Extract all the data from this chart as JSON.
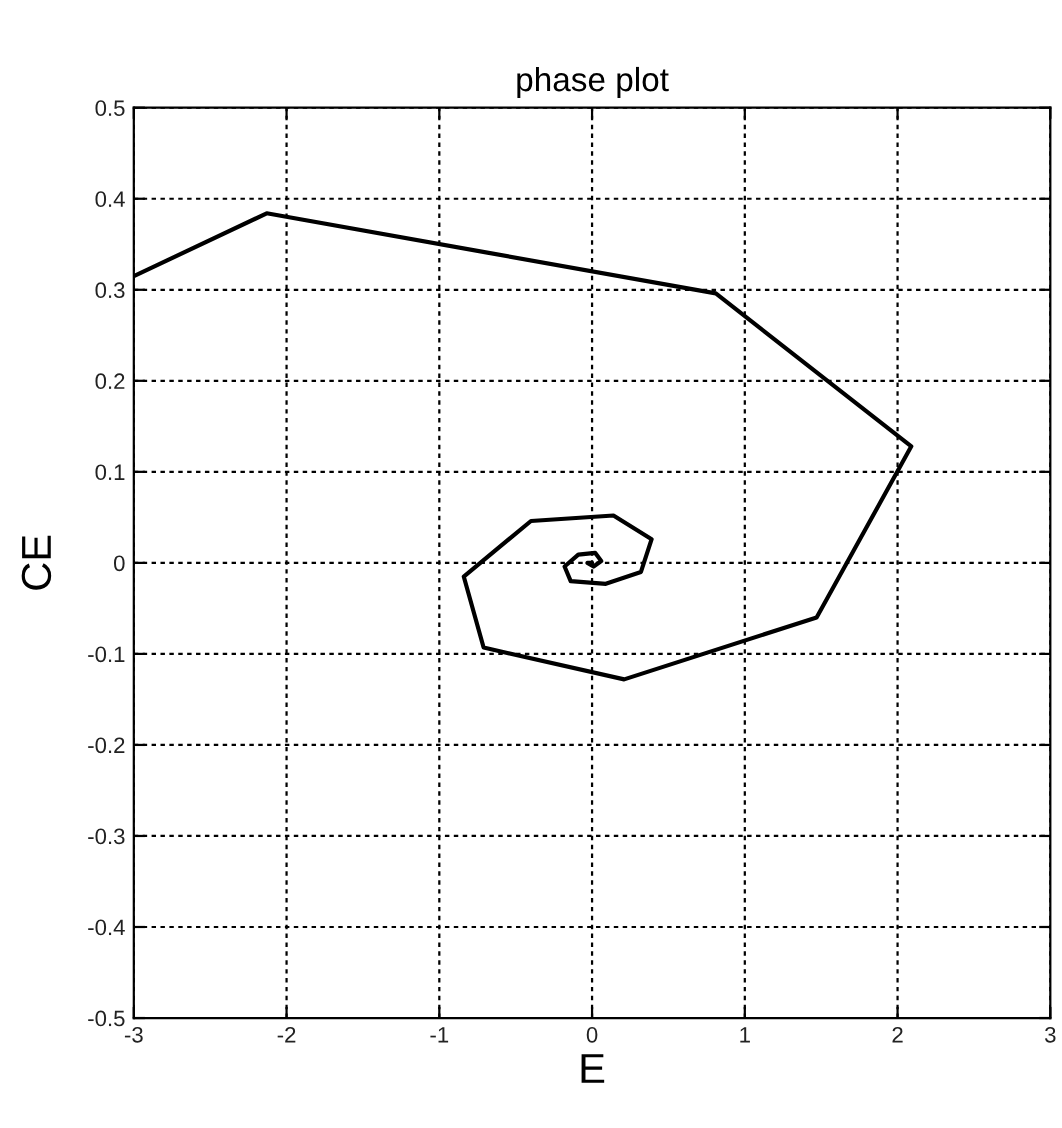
{
  "chart_data": {
    "type": "line",
    "title": "phase plot",
    "xlabel": "E",
    "ylabel": "CE",
    "series": [
      {
        "color": "#000000",
        "x": [
          -3.0,
          -2.13,
          0.81,
          2.09,
          1.47,
          0.21,
          -0.71,
          -0.84,
          -0.4,
          0.14,
          0.39,
          0.32,
          0.09,
          -0.14,
          -0.18,
          -0.09,
          0.02,
          0.06,
          0.01,
          -0.03,
          0.0
        ],
        "values": [
          0.315,
          0.384,
          0.296,
          0.128,
          -0.06,
          -0.128,
          -0.093,
          -0.015,
          0.046,
          0.052,
          0.026,
          -0.01,
          -0.023,
          -0.02,
          -0.004,
          0.009,
          0.011,
          0.002,
          -0.004,
          0.0,
          0.0
        ]
      }
    ],
    "xlim": [
      -3,
      3
    ],
    "ylim": [
      -0.5,
      0.5
    ],
    "xticks": [
      -3,
      -2,
      -1,
      0,
      1,
      2,
      3
    ],
    "yticks": [
      -0.5,
      -0.4,
      -0.3,
      -0.2,
      -0.1,
      0,
      0.1,
      0.2,
      0.3,
      0.4,
      0.5
    ],
    "grid": true,
    "line_style": "solid",
    "marker": "none"
  }
}
